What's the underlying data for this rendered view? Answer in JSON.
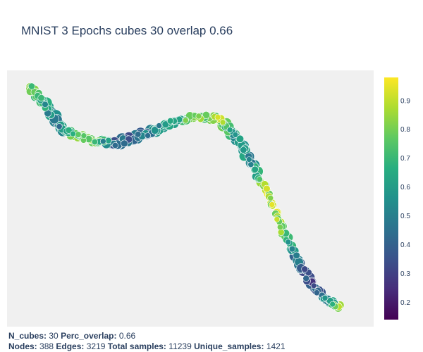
{
  "chart_data": {
    "type": "scatter",
    "title": "MNIST 3 Epochs cubes 30 overlap 0.66",
    "colorscale": "viridis",
    "colorbar": {
      "ticks": [
        0.2,
        0.3,
        0.4,
        0.5,
        0.6,
        0.7,
        0.8,
        0.9
      ],
      "range": [
        0.14,
        0.98
      ]
    },
    "grid": false,
    "background": "#f0f0f0",
    "curve_anchors": [
      {
        "x": 0.0,
        "y": 1.0,
        "s": 0.55,
        "c": 0.78
      },
      {
        "x": 0.04,
        "y": 0.935,
        "s": 0.85,
        "c": 0.58
      },
      {
        "x": 0.09,
        "y": 0.83,
        "s": 0.8,
        "c": 0.42
      },
      {
        "x": 0.14,
        "y": 0.78,
        "s": 0.45,
        "c": 0.72
      },
      {
        "x": 0.2,
        "y": 0.76,
        "s": 0.4,
        "c": 0.78
      },
      {
        "x": 0.27,
        "y": 0.745,
        "s": 0.9,
        "c": 0.28
      },
      {
        "x": 0.35,
        "y": 0.78,
        "s": 0.8,
        "c": 0.36
      },
      {
        "x": 0.43,
        "y": 0.835,
        "s": 0.7,
        "c": 0.55
      },
      {
        "x": 0.51,
        "y": 0.87,
        "s": 0.55,
        "c": 0.75
      },
      {
        "x": 0.59,
        "y": 0.86,
        "s": 0.55,
        "c": 0.85
      },
      {
        "x": 0.64,
        "y": 0.78,
        "s": 0.85,
        "c": 0.55
      },
      {
        "x": 0.69,
        "y": 0.66,
        "s": 0.65,
        "c": 0.48
      },
      {
        "x": 0.74,
        "y": 0.52,
        "s": 0.45,
        "c": 0.88
      },
      {
        "x": 0.78,
        "y": 0.38,
        "s": 0.4,
        "c": 0.86
      },
      {
        "x": 0.83,
        "y": 0.23,
        "s": 0.55,
        "c": 0.4
      },
      {
        "x": 0.88,
        "y": 0.1,
        "s": 0.55,
        "c": 0.25
      },
      {
        "x": 0.93,
        "y": 0.03,
        "s": 0.45,
        "c": 0.45
      },
      {
        "x": 0.96,
        "y": 0.0,
        "s": 0.35,
        "c": 0.86
      }
    ]
  },
  "footer": {
    "line1": [
      {
        "label": "N_cubes:",
        "value": "30"
      },
      {
        "label": "Perc_overlap:",
        "value": "0.66"
      }
    ],
    "line2": [
      {
        "label": "Nodes:",
        "value": "388"
      },
      {
        "label": "Edges:",
        "value": "3219"
      },
      {
        "label": "Total samples:",
        "value": "11239"
      },
      {
        "label": "Unique_samples:",
        "value": "1421"
      }
    ]
  }
}
